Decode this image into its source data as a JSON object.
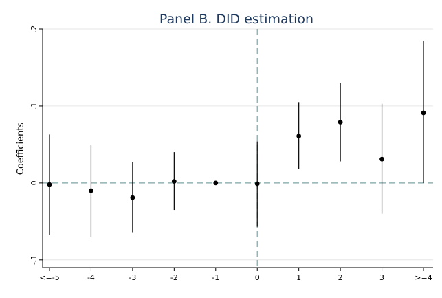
{
  "chart_data": {
    "type": "scatter",
    "title": "Panel B. DID estimation",
    "xlabel": "",
    "ylabel": "Coefficients",
    "categories": [
      "<=-5",
      "-4",
      "-3",
      "-2",
      "-1",
      "0",
      "1",
      "2",
      "3",
      ">=4"
    ],
    "yticks": [
      ".2",
      ".1",
      "0",
      "-.1"
    ],
    "ytick_values": [
      0.2,
      0.1,
      0,
      -0.1
    ],
    "ylim": [
      -0.11,
      0.2
    ],
    "grid": true,
    "reference_lines": {
      "horizontal_at": 0,
      "vertical_at_category": "0",
      "style": "dashed"
    },
    "series": [
      {
        "estimate": [
          -0.002,
          -0.01,
          -0.019,
          0.002,
          0.0,
          -0.001,
          0.061,
          0.079,
          0.031,
          0.091
        ],
        "ci_lower": [
          -0.068,
          -0.07,
          -0.064,
          -0.035,
          0.0,
          -0.057,
          0.018,
          0.028,
          -0.04,
          0.0
        ],
        "ci_upper": [
          0.063,
          0.049,
          0.027,
          0.04,
          0.0,
          0.054,
          0.105,
          0.13,
          0.103,
          0.184
        ]
      }
    ],
    "colors": {
      "title": "#1f3a5f",
      "refline": "#7fa3a3",
      "grid": "#e6e6e6",
      "marker": "#000000"
    }
  }
}
